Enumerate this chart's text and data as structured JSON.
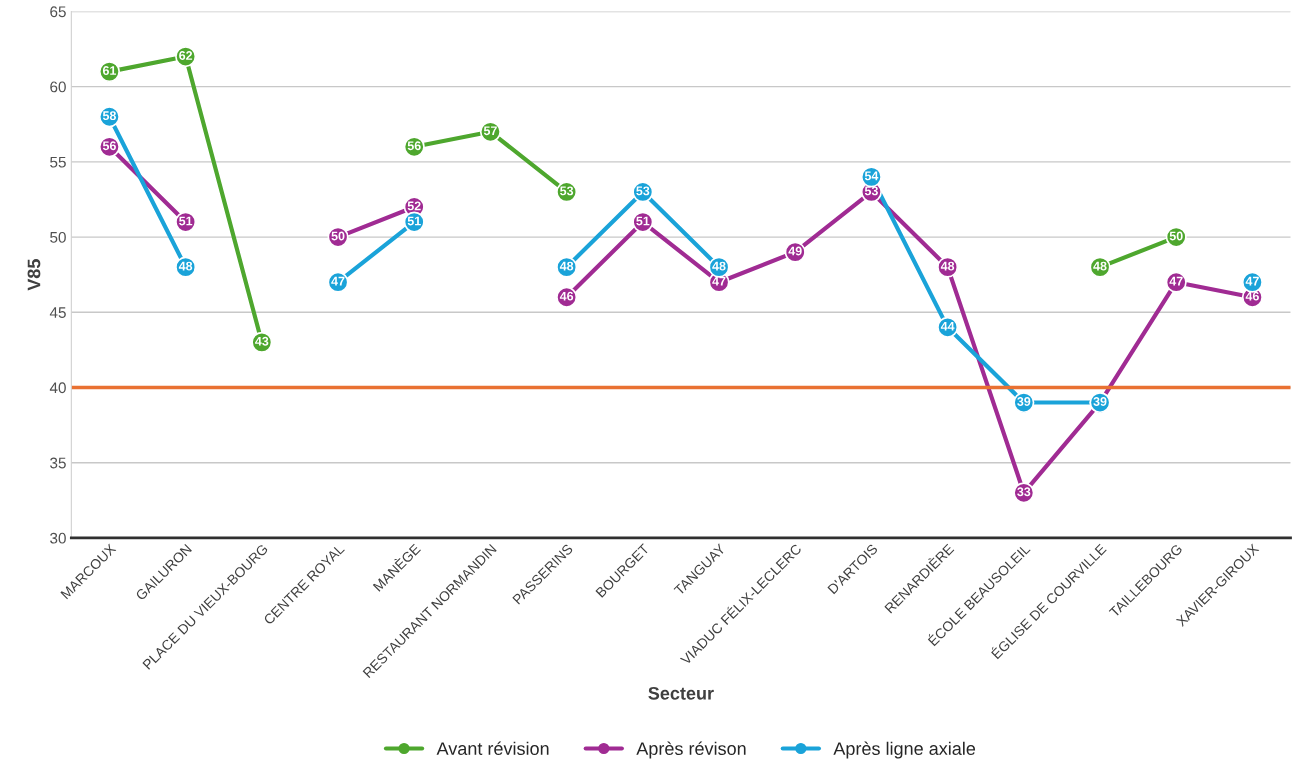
{
  "chart_data": {
    "type": "line",
    "xlabel": "Secteur",
    "ylabel": "V85",
    "categories": [
      "MARCOUX",
      "GAILURON",
      "PLACE DU VIEUX-BOURG",
      "CENTRE ROYAL",
      "MANÈGE",
      "RESTAURANT NORMANDIN",
      "PASSERINS",
      "BOURGET",
      "TANGUAY",
      "VIADUC FÉLIX-LECLERC",
      "D'ARTOIS",
      "RENARDIÈRE",
      "ÉCOLE BEAUSOLEIL",
      "ÉGLISE DE COURVILLE",
      "TAILLEBOURG",
      "XAVIER-GIROUX"
    ],
    "series": [
      {
        "name": "Avant révision",
        "color": "#4ea72e",
        "values": [
          61,
          62,
          43,
          null,
          56,
          57,
          53,
          null,
          null,
          null,
          null,
          null,
          null,
          48,
          50,
          null
        ]
      },
      {
        "name": "Après révison",
        "color": "#a02b93",
        "values": [
          56,
          51,
          null,
          50,
          52,
          null,
          46,
          51,
          47,
          49,
          53,
          48,
          33,
          39,
          47,
          46
        ],
        "value_labels": [
          "56",
          "51",
          null,
          "50",
          "52",
          null,
          "46",
          "51",
          "47",
          "49",
          "53",
          "48",
          "33",
          null,
          "47",
          "46"
        ]
      },
      {
        "name": "Après ligne axiale",
        "color": "#1aa3d9",
        "values": [
          58,
          48,
          null,
          47,
          51,
          null,
          48,
          53,
          48,
          null,
          54,
          44,
          39,
          39,
          null,
          47
        ]
      }
    ],
    "ylim": [
      30,
      65
    ],
    "yticks": [
      30,
      35,
      40,
      45,
      50,
      55,
      60,
      65
    ],
    "ref_lines": [
      {
        "axis": "y",
        "value": 40,
        "color": "#e97132"
      }
    ],
    "grid": "y",
    "legend": "bottom",
    "marker": "circle",
    "line_style": "solid",
    "data_labels": true
  }
}
